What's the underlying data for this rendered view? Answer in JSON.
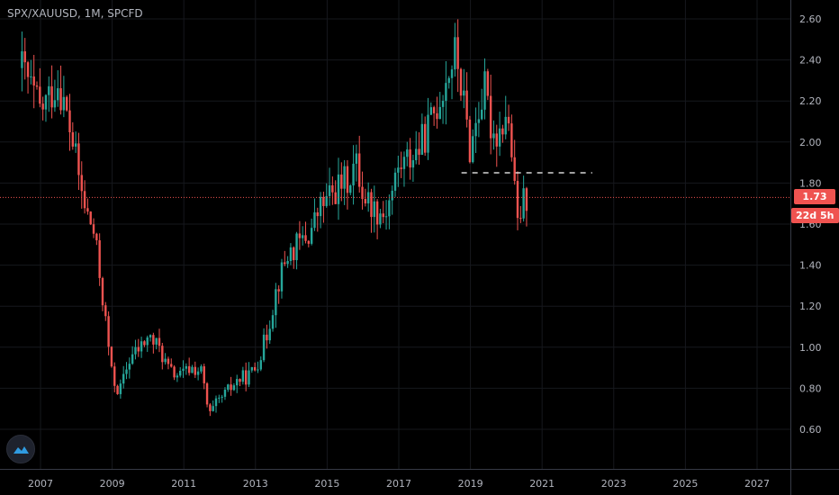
{
  "symbol_label": "SPX/XAUUSD, 1M, SPCFD",
  "price_tag": "1.73",
  "countdown_tag": "22d 5h",
  "colors": {
    "up": "#26a69a",
    "down": "#ef5350",
    "current": "#ef5350",
    "support": "#ffffff"
  },
  "chart_data": {
    "type": "candlestick",
    "title": "SPX/XAUUSD",
    "interval": "1M",
    "y_ticks": [
      "0.60",
      "0.80",
      "1.00",
      "1.20",
      "1.40",
      "1.60",
      "1.80",
      "2.00",
      "2.20",
      "2.40",
      "2.60"
    ],
    "x_ticks": [
      "2007",
      "2009",
      "2011",
      "2013",
      "2015",
      "2017",
      "2019",
      "2021",
      "2023",
      "2025",
      "2027"
    ],
    "ylim": [
      0.5,
      2.65
    ],
    "current_price": 1.73,
    "support_level": 1.85,
    "close_series": {
      "2006.5": 2.36,
      "2007.0": 2.15,
      "2007.5": 2.3,
      "2007.9": 2.0,
      "2008.2": 1.7,
      "2008.5": 1.55,
      "2008.8": 1.15,
      "2009.0": 0.85,
      "2009.2": 0.78,
      "2009.5": 0.95,
      "2009.8": 1.0,
      "2010.0": 1.05,
      "2010.3": 1.0,
      "2010.6": 0.88,
      "2010.9": 0.86,
      "2011.2": 0.9,
      "2011.5": 0.88,
      "2011.7": 0.66,
      "2011.9": 0.72,
      "2012.2": 0.78,
      "2012.5": 0.84,
      "2012.8": 0.86,
      "2013.0": 0.9,
      "2013.3": 1.05,
      "2013.6": 1.3,
      "2013.9": 1.45,
      "2014.2": 1.5,
      "2014.5": 1.55,
      "2014.8": 1.68,
      "2015.0": 1.72,
      "2015.3": 1.78,
      "2015.6": 1.82,
      "2015.8": 1.9,
      "2016.0": 1.75,
      "2016.3": 1.68,
      "2016.6": 1.65,
      "2016.8": 1.75,
      "2017.0": 1.88,
      "2017.3": 1.92,
      "2017.6": 1.98,
      "2017.9": 2.1,
      "2018.1": 2.2,
      "2018.4": 2.35,
      "2018.6": 2.44,
      "2018.8": 2.2,
      "2019.0": 1.95,
      "2019.2": 2.15,
      "2019.4": 2.25,
      "2019.6": 2.05,
      "2019.8": 2.05,
      "2020.0": 2.15,
      "2020.15": 1.95,
      "2020.3": 1.58,
      "2020.45": 1.7,
      "2020.55": 1.73
    }
  }
}
